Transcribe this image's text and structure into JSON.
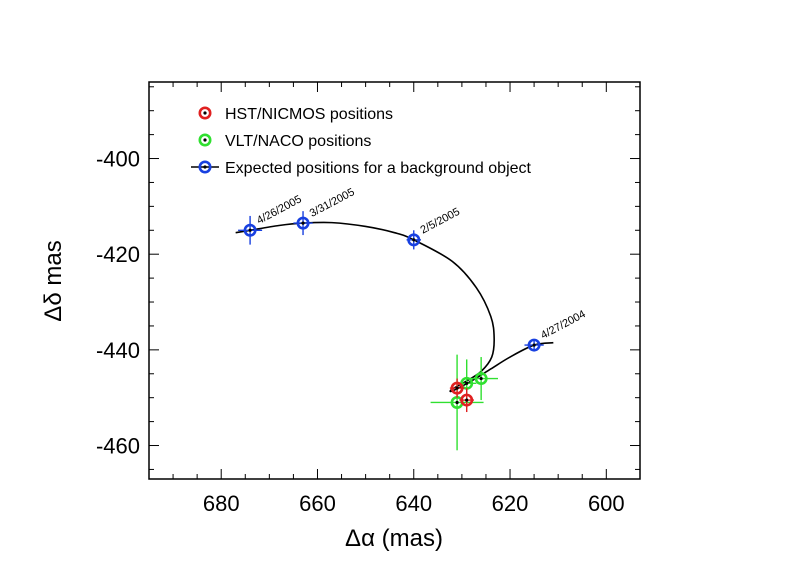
{
  "chart_data": {
    "type": "scatter",
    "title": "",
    "xlabel": "Δα (mas)",
    "ylabel": "Δδ mas",
    "xlim": [
      695,
      593
    ],
    "ylim": [
      -467,
      -384
    ],
    "x_ticks": [
      680,
      660,
      640,
      620,
      600
    ],
    "y_ticks": [
      -400,
      -420,
      -440,
      -460
    ],
    "legend_position": "top-left",
    "legend": [
      {
        "label": "HST/NICMOS positions",
        "color": "#e02020"
      },
      {
        "label": "VLT/NACO positions",
        "color": "#30e030"
      },
      {
        "label": "Expected positions for a background object",
        "color": "#1840e0"
      }
    ],
    "series": [
      {
        "name": "HST/NICMOS positions",
        "color": "#e02020",
        "points": [
          {
            "x": 631,
            "y": -448,
            "xerr": 1.5,
            "yerr": 2.0
          },
          {
            "x": 629,
            "y": -450.5,
            "xerr": 1.5,
            "yerr": 2.5
          }
        ]
      },
      {
        "name": "VLT/NACO positions",
        "color": "#30e030",
        "points": [
          {
            "x": 631,
            "y": -451,
            "xerr": 5.5,
            "yerr": 10
          },
          {
            "x": 626,
            "y": -446,
            "xerr": 3.5,
            "yerr": 4.5
          },
          {
            "x": 629,
            "y": -447,
            "xerr": 2.0,
            "yerr": 5.0
          }
        ]
      },
      {
        "name": "Expected positions for a background object",
        "color": "#1840e0",
        "points": [
          {
            "x": 674,
            "y": -415,
            "xerr": 2.5,
            "yerr": 3.0,
            "label": "4/26/2005"
          },
          {
            "x": 663,
            "y": -413.5,
            "xerr": 2.0,
            "yerr": 2.5,
            "label": "3/31/2005"
          },
          {
            "x": 640,
            "y": -417,
            "xerr": 1.5,
            "yerr": 2.0,
            "label": "2/5/2005"
          },
          {
            "x": 615,
            "y": -439,
            "xerr": 2.0,
            "yerr": 1.0,
            "label": "4/27/2004"
          }
        ],
        "track": [
          [
            677,
            -415.5
          ],
          [
            674,
            -415
          ],
          [
            668,
            -414
          ],
          [
            663,
            -413.5
          ],
          [
            657,
            -413.4
          ],
          [
            650,
            -414.2
          ],
          [
            644,
            -415.5
          ],
          [
            640,
            -417
          ],
          [
            632,
            -421.5
          ],
          [
            627,
            -427
          ],
          [
            624,
            -433
          ],
          [
            623.3,
            -437.5
          ],
          [
            623.8,
            -441.5
          ],
          [
            626,
            -444.5
          ],
          [
            629,
            -446.5
          ],
          [
            632,
            -448.2
          ],
          [
            632,
            -448.6
          ],
          [
            628,
            -446.5
          ],
          [
            624,
            -444
          ],
          [
            620,
            -441.5
          ],
          [
            615,
            -439
          ],
          [
            611,
            -438.5
          ]
        ]
      }
    ]
  }
}
